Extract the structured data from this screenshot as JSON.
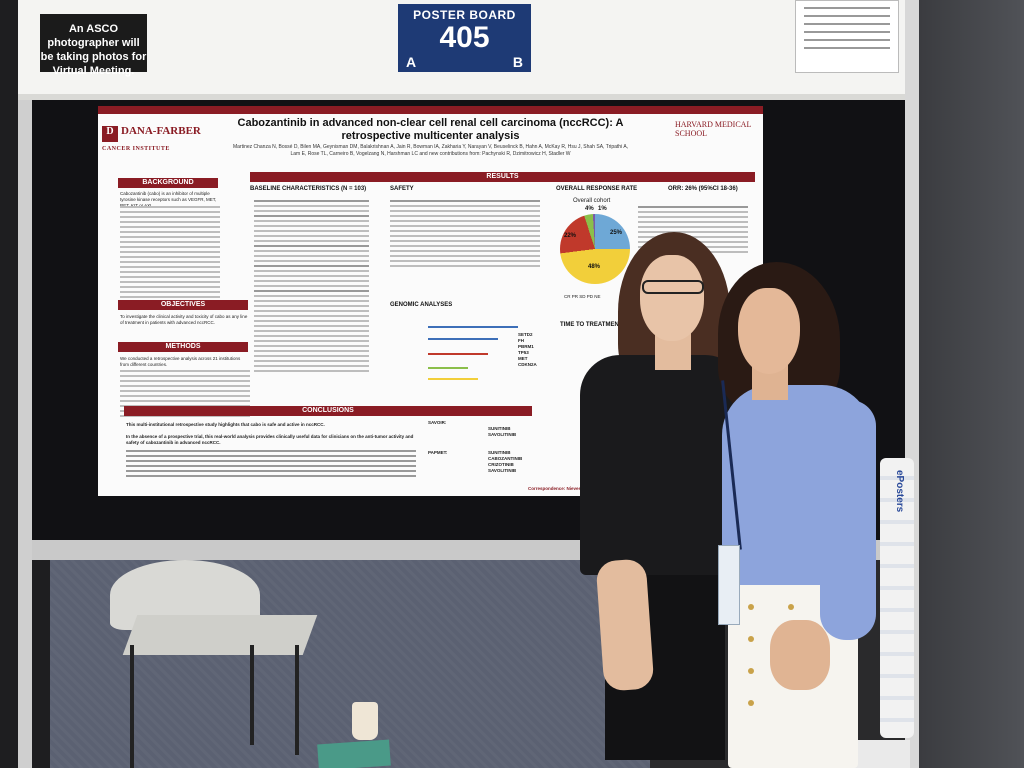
{
  "booth": {
    "asco_notice": "An ASCO photographer will be taking photos for Virtual Meeting.",
    "board_label": "POSTER BOARD",
    "board_number": "405",
    "board_side_a": "A",
    "board_side_b": "B"
  },
  "poster": {
    "logo_left": "DANA-FARBER",
    "logo_left_sub": "CANCER INSTITUTE",
    "logo_right": "HARVARD MEDICAL SCHOOL",
    "title": "Cabozantinib in advanced non-clear cell renal cell carcinoma (nccRCC): A retrospective multicenter analysis",
    "authors": "Martinez Chanza N, Bossé D, Bilen MA, Geynisman DM, Balakrishnan A, Jain R, Bowman IA, Zakharia Y, Narayan V, Beuselinck B, Hahn A, McKay R, Hsu J, Shah SA, Tripathi A, Lam E, Rose TL, Carneiro B, Vogelzang N, Harshman LC and new contributions from: Pachynski R, Dzimitrowicz H, Stadler W",
    "sections": {
      "background": "BACKGROUND",
      "objectives": "OBJECTIVES",
      "methods": "METHODS",
      "results": "RESULTS",
      "conclusions": "CONCLUSIONS"
    },
    "background_text": "Cabozantinib (cabo) is an inhibitor of multiple tyrosine kinase receptors such as VEGFR, MET, RET, KIT or AXL.",
    "objectives_text": "To investigate the clinical activity and toxicity of cabo as any line of treatment in patients with advanced nccRCC.",
    "methods_text": "We conducted a retrospective analysis across 21 institutions from different countries.",
    "baseline_title": "BASELINE CHARACTERISTICS (N = 103)",
    "safety_title": "SAFETY",
    "response_title": "OVERALL RESPONSE RATE",
    "orr_text": "ORR: 26% (95%CI 18-36)",
    "cohort_label": "Overall cohort",
    "genomic_title": "GENOMIC ANALYSES",
    "ttf_title": "TIME TO TREATMENT FA",
    "donut_labels": [
      "4%",
      "1%",
      "22%",
      "25%",
      "48%"
    ],
    "legend": "CR  PR  SD  PD  NE",
    "conclusion_1": "This multi-institutional retrospective study highlights that cabo is safe and active in nccRCC.",
    "conclusion_2": "In the absence of a prospective trial, this real-world analysis provides clinically useful data for clinicians on the anti-tumor activity and safety of cabozantinib in advanced nccRCC.",
    "savoir": "SAVOIR:",
    "papmet": "PAPMET:",
    "drugs_savoir": [
      "SUNITINIB",
      "SAVOLITINIB"
    ],
    "drugs_papmet": [
      "SUNITINIB",
      "CABOZANTINIB",
      "CRIZOTINIB",
      "SAVOLITINIB"
    ],
    "correspondence": "Correspondence: Nieves_M",
    "genes": [
      "SETD2",
      "FH",
      "PBRM1",
      "TP53",
      "MET",
      "CDKN2A"
    ]
  },
  "props": {
    "tube_text": "ePosters"
  },
  "colors": {
    "poster_red": "#8a1c24",
    "board_blue": "#1e3a75",
    "blouse_blue": "#8da4dc"
  }
}
